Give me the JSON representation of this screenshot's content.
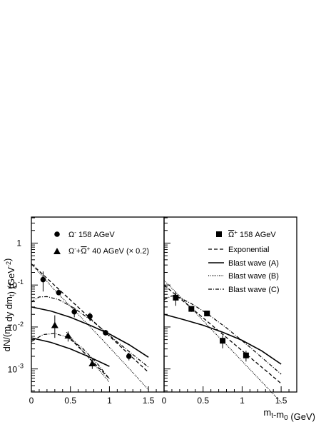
{
  "chart_data": [
    {
      "type": "scatter",
      "panel": "left",
      "ylabel_parts": [
        {
          "t": "dN/(m",
          "sub": false
        },
        {
          "t": "t",
          "sub": true
        },
        {
          "t": " dy dm",
          "sub": false
        },
        {
          "t": "t",
          "sub": true
        },
        {
          "t": ") (GeV",
          "sub": false
        },
        {
          "t": "-2",
          "sup": true
        },
        {
          "t": ")",
          "sub": false
        }
      ],
      "xlim": [
        0,
        1.7
      ],
      "ylim_log10": [
        -3.55,
        0.62
      ],
      "y_scale": "log",
      "x_ticks": [
        "0",
        "0.5",
        "1",
        "1.5"
      ],
      "y_ticks": [
        "1",
        "10-1",
        "10-2",
        "10-3"
      ],
      "legend": [
        {
          "marker": "circle",
          "label_main": "Ω",
          "label_sup": "-",
          "label_rest": " 158 AGeV"
        },
        {
          "marker": "triangle",
          "label_html": "Ω⁻+Ω̄⁺ 40 AGeV (× 0.2)"
        }
      ],
      "series": [
        {
          "name": "Ω- 158 AGeV",
          "marker": "circle",
          "x": [
            0.15,
            0.35,
            0.55,
            0.75,
            0.95,
            1.25
          ],
          "y": [
            0.135,
            0.066,
            0.023,
            0.018,
            0.0073,
            0.002
          ],
          "err_low": [
            0.07,
            0.058,
            0.017,
            0.014,
            0.0062,
            0.0016
          ],
          "err_high": [
            0.21,
            0.076,
            0.029,
            0.022,
            0.0085,
            0.0024
          ]
        },
        {
          "name": "Ω-+Ω+ 40 AGeV (× 0.2)",
          "marker": "triangle",
          "x": [
            0.3,
            0.47,
            0.78
          ],
          "y": [
            0.011,
            0.0062,
            0.00135
          ],
          "err_low": [
            0.0055,
            0.0045,
            0.001
          ],
          "err_high": [
            0.019,
            0.0078,
            0.0017
          ]
        }
      ],
      "curves": [
        {
          "style": "dashed",
          "label": "Exponential",
          "x": [
            0,
            1.5
          ],
          "y": [
            0.32,
            0.00083
          ]
        },
        {
          "style": "dashed",
          "label": "Exponential",
          "x": [
            0.45,
            1.0
          ],
          "y": [
            0.0066,
            0.00058
          ]
        },
        {
          "style": "solid",
          "label": "Blast wave (A)",
          "x": [
            0,
            0.25,
            0.5,
            0.75,
            1.0,
            1.25,
            1.5
          ],
          "y": [
            0.03,
            0.024,
            0.017,
            0.011,
            0.0068,
            0.0038,
            0.0019
          ]
        },
        {
          "style": "solid",
          "label": "Blast wave (A)",
          "x": [
            0,
            0.25,
            0.5,
            0.75,
            1.0
          ],
          "y": [
            0.0055,
            0.0043,
            0.003,
            0.0019,
            0.00115
          ]
        },
        {
          "style": "dotted",
          "label": "Blast wave (B)",
          "x": [
            0,
            0.3,
            0.6,
            0.9,
            1.2,
            1.5
          ],
          "y": [
            0.32,
            0.075,
            0.02,
            0.0052,
            0.0013,
            0.00032
          ]
        },
        {
          "style": "dotted",
          "label": "Blast wave (B)",
          "x": [
            0.45,
            0.7,
            1.0
          ],
          "y": [
            0.0075,
            0.0022,
            0.00048
          ]
        },
        {
          "style": "dashdot",
          "label": "Blast wave (C)",
          "x": [
            0,
            0.1,
            0.2,
            0.35,
            0.55,
            0.8,
            1.1,
            1.5
          ],
          "y": [
            0.04,
            0.052,
            0.053,
            0.045,
            0.028,
            0.013,
            0.0044,
            0.0011
          ]
        },
        {
          "style": "dashdot",
          "label": "Blast wave (C)",
          "x": [
            0,
            0.15,
            0.3,
            0.45,
            0.65,
            0.85,
            1.0
          ],
          "y": [
            0.0045,
            0.0066,
            0.007,
            0.0058,
            0.0032,
            0.0013,
            0.00058
          ]
        }
      ]
    },
    {
      "type": "scatter",
      "panel": "right",
      "xlabel_parts": [
        {
          "t": "m",
          "sub": false
        },
        {
          "t": "t",
          "sub": true
        },
        {
          "t": "-m",
          "sub": false
        },
        {
          "t": "0",
          "sub": true
        },
        {
          "t": " (GeV)",
          "sub": false
        }
      ],
      "xlim": [
        0,
        1.7
      ],
      "ylim_log10": [
        -3.55,
        0.62
      ],
      "y_scale": "log",
      "x_ticks": [
        "0",
        "0.5",
        "1",
        "1.5"
      ],
      "legend": [
        {
          "marker": "square",
          "label_html": "Ω̄⁺ 158 AGeV"
        },
        {
          "style": "dashed",
          "label": "Exponential"
        },
        {
          "style": "solid",
          "label": "Blast wave (A)"
        },
        {
          "style": "dotted",
          "label": "Blast wave (B)"
        },
        {
          "style": "dashdot",
          "label": "Blast wave (C)"
        }
      ],
      "series": [
        {
          "name": "Ω+ 158 AGeV",
          "marker": "square",
          "x": [
            0.15,
            0.35,
            0.55,
            0.75,
            1.05
          ],
          "y": [
            0.05,
            0.027,
            0.021,
            0.0047,
            0.0021
          ],
          "err_low": [
            0.032,
            0.023,
            0.018,
            0.0031,
            0.0015
          ],
          "err_high": [
            0.07,
            0.031,
            0.024,
            0.0063,
            0.0027
          ]
        }
      ],
      "curves": [
        {
          "style": "dashed",
          "label": "Exponential",
          "x": [
            0,
            1.5
          ],
          "y": [
            0.1,
            0.00045
          ]
        },
        {
          "style": "solid",
          "label": "Blast wave (A)",
          "x": [
            0,
            0.25,
            0.5,
            0.75,
            1.0,
            1.25,
            1.5
          ],
          "y": [
            0.02,
            0.015,
            0.011,
            0.0075,
            0.0048,
            0.0027,
            0.0013
          ]
        },
        {
          "style": "dotted",
          "label": "Blast wave (B)",
          "x": [
            0,
            0.3,
            0.6,
            0.9,
            1.2,
            1.5
          ],
          "y": [
            0.13,
            0.035,
            0.009,
            0.0024,
            0.00062,
            0.00016
          ]
        },
        {
          "style": "dashdot",
          "label": "Blast wave (C)",
          "x": [
            0,
            0.1,
            0.2,
            0.35,
            0.55,
            0.8,
            1.1,
            1.5
          ],
          "y": [
            0.045,
            0.055,
            0.05,
            0.036,
            0.021,
            0.0095,
            0.0033,
            0.00075
          ]
        }
      ]
    }
  ]
}
